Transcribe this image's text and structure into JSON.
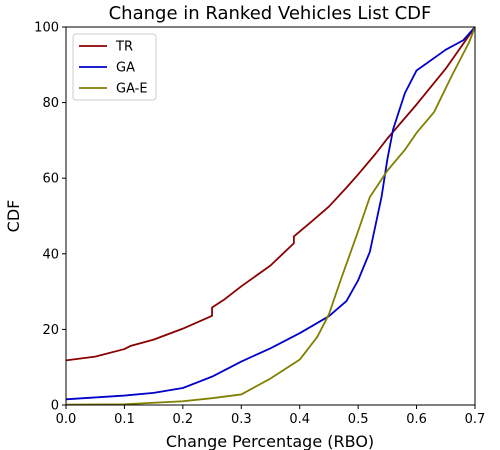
{
  "chart_data": {
    "type": "line",
    "title": "Change in Ranked Vehicles List CDF",
    "xlabel": "Change Percentage (RBO)",
    "ylabel": "CDF",
    "xlim": [
      0.0,
      0.7
    ],
    "ylim": [
      0,
      100
    ],
    "xticks": [
      "0.0",
      "0.1",
      "0.2",
      "0.3",
      "0.4",
      "0.5",
      "0.6",
      "0.7"
    ],
    "yticks": [
      "0",
      "20",
      "40",
      "60",
      "80",
      "100"
    ],
    "grid": false,
    "legend_position": "top-left",
    "series": [
      {
        "name": "TR",
        "color": "#8b0000",
        "points": [
          [
            0.0,
            11.8
          ],
          [
            0.05,
            12.8
          ],
          [
            0.1,
            14.8
          ],
          [
            0.11,
            15.6
          ],
          [
            0.15,
            17.3
          ],
          [
            0.2,
            20.2
          ],
          [
            0.25,
            23.6
          ],
          [
            0.25,
            25.8
          ],
          [
            0.27,
            27.8
          ],
          [
            0.3,
            31.4
          ],
          [
            0.35,
            36.9
          ],
          [
            0.39,
            42.8
          ],
          [
            0.39,
            44.6
          ],
          [
            0.42,
            48.5
          ],
          [
            0.45,
            52.5
          ],
          [
            0.48,
            57.5
          ],
          [
            0.5,
            61.0
          ],
          [
            0.53,
            66.5
          ],
          [
            0.55,
            70.5
          ],
          [
            0.6,
            79.5
          ],
          [
            0.65,
            89.0
          ],
          [
            0.7,
            100.0
          ]
        ]
      },
      {
        "name": "GA",
        "color": "#0000cd",
        "points": [
          [
            0.0,
            1.5
          ],
          [
            0.1,
            2.5
          ],
          [
            0.15,
            3.2
          ],
          [
            0.2,
            4.5
          ],
          [
            0.25,
            7.5
          ],
          [
            0.3,
            11.5
          ],
          [
            0.35,
            15.0
          ],
          [
            0.4,
            19.0
          ],
          [
            0.45,
            23.5
          ],
          [
            0.48,
            27.5
          ],
          [
            0.5,
            33.0
          ],
          [
            0.52,
            40.5
          ],
          [
            0.54,
            55.0
          ],
          [
            0.55,
            65.0
          ],
          [
            0.56,
            73.0
          ],
          [
            0.58,
            82.5
          ],
          [
            0.6,
            88.5
          ],
          [
            0.65,
            94.0
          ],
          [
            0.68,
            96.5
          ],
          [
            0.7,
            100.0
          ]
        ]
      },
      {
        "name": "GA-E",
        "color": "#808000",
        "points": [
          [
            0.0,
            0.1
          ],
          [
            0.1,
            0.2
          ],
          [
            0.2,
            1.0
          ],
          [
            0.25,
            1.8
          ],
          [
            0.3,
            2.8
          ],
          [
            0.35,
            7.0
          ],
          [
            0.4,
            12.0
          ],
          [
            0.43,
            18.0
          ],
          [
            0.45,
            24.0
          ],
          [
            0.47,
            33.0
          ],
          [
            0.5,
            46.0
          ],
          [
            0.52,
            55.0
          ],
          [
            0.55,
            62.0
          ],
          [
            0.58,
            67.5
          ],
          [
            0.6,
            72.0
          ],
          [
            0.63,
            77.5
          ],
          [
            0.66,
            87.0
          ],
          [
            0.69,
            96.0
          ],
          [
            0.7,
            100.0
          ]
        ]
      }
    ]
  }
}
